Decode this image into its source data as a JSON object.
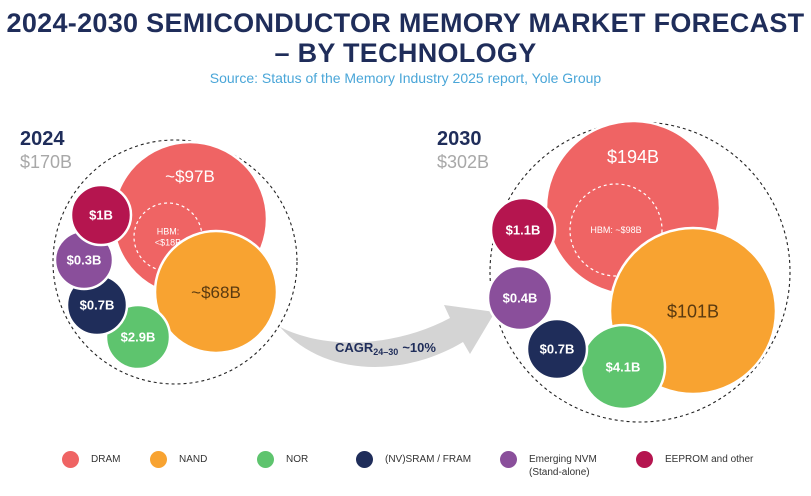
{
  "title": {
    "line1": "2024-2030 SEMICONDUCTOR MEMORY MARKET FORECAST",
    "line2": "– BY TECHNOLOGY"
  },
  "subtitle": "Source: Status of the Memory Industry 2025 report, Yole Group",
  "colors": {
    "DRAM": "#ef6464",
    "NAND": "#f8a331",
    "NOR": "#5ec46e",
    "NVSRAM": "#1f2d5a",
    "EmergingNVM": "#8a4f9b",
    "EEPROM": "#b5154f",
    "title": "#1f2d5a",
    "subtitle": "#4aa6d8",
    "arrow": "#d4d4d4"
  },
  "chart_data": {
    "type": "bubble",
    "panels": [
      {
        "year": "2024",
        "total": "$170B",
        "bubbles": [
          {
            "segment": "DRAM",
            "label": "~$97B",
            "value": 97,
            "sublabel": "HBM:\n<$18B",
            "hbm_value": 18
          },
          {
            "segment": "NAND",
            "label": "~$68B",
            "value": 68
          },
          {
            "segment": "NOR",
            "label": "$2.9B",
            "value": 2.9
          },
          {
            "segment": "(NV)SRAM / FRAM",
            "label": "$0.7B",
            "value": 0.7
          },
          {
            "segment": "Emerging NVM (Stand-alone)",
            "label": "$0.3B",
            "value": 0.3
          },
          {
            "segment": "EEPROM and other",
            "label": "$1B",
            "value": 1
          }
        ]
      },
      {
        "year": "2030",
        "total": "$302B",
        "bubbles": [
          {
            "segment": "DRAM",
            "label": "$194B",
            "value": 194,
            "sublabel": "HBM: ~$98B",
            "hbm_value": 98
          },
          {
            "segment": "NAND",
            "label": "$101B",
            "value": 101
          },
          {
            "segment": "NOR",
            "label": "$4.1B",
            "value": 4.1
          },
          {
            "segment": "(NV)SRAM / FRAM",
            "label": "$0.7B",
            "value": 0.7
          },
          {
            "segment": "Emerging NVM (Stand-alone)",
            "label": "$0.4B",
            "value": 0.4
          },
          {
            "segment": "EEPROM and other",
            "label": "$1.1B",
            "value": 1.1
          }
        ]
      }
    ],
    "cagr": {
      "label": "CAGR",
      "subscript": "24–30",
      "value": "~10%"
    },
    "legend": [
      {
        "key": "DRAM",
        "label": "DRAM"
      },
      {
        "key": "NAND",
        "label": "NAND"
      },
      {
        "key": "NOR",
        "label": "NOR"
      },
      {
        "key": "NVSRAM",
        "label": "(NV)SRAM / FRAM"
      },
      {
        "key": "EmergingNVM",
        "label": "Emerging NVM (Stand-alone)"
      },
      {
        "key": "EEPROM",
        "label": "EEPROM and other"
      }
    ]
  }
}
